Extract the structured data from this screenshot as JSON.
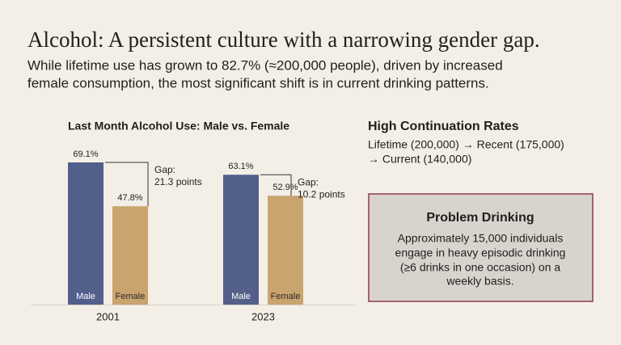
{
  "header": {
    "title": "Alcohol: A persistent culture with a narrowing gender gap.",
    "subtitle_lines": [
      "While lifetime use has grown to 82.7% (≈200,000 people), driven by increased",
      "female consumption, the most significant shift is in current drinking patterns."
    ]
  },
  "chart_data": {
    "type": "bar",
    "title": "Last Month Alcohol Use: Male vs. Female",
    "categories": [
      "2001",
      "2023"
    ],
    "series": [
      {
        "name": "Male",
        "color": "#525f8a",
        "values": [
          69.1,
          63.1
        ],
        "value_labels": [
          "69.1%",
          "63.1%"
        ]
      },
      {
        "name": "Female",
        "color": "#c9a46f",
        "values": [
          47.8,
          52.9
        ],
        "value_labels": [
          "47.8%",
          "52.9%"
        ]
      }
    ],
    "annotations": [
      [
        "Gap:",
        "21.3 points"
      ],
      [
        "Gap:",
        "10.2 points"
      ]
    ]
  },
  "continuation": {
    "title": "High Continuation Rates",
    "lines": [
      "Lifetime (200,000) → Recent (175,000)",
      "→ Current (140,000)"
    ]
  },
  "problem": {
    "title": "Problem Drinking",
    "lines": [
      "Approximately 15,000 individuals",
      "engage in heavy episodic drinking",
      "(≥6 drinks in one occasion) on a",
      "weekly basis."
    ]
  }
}
